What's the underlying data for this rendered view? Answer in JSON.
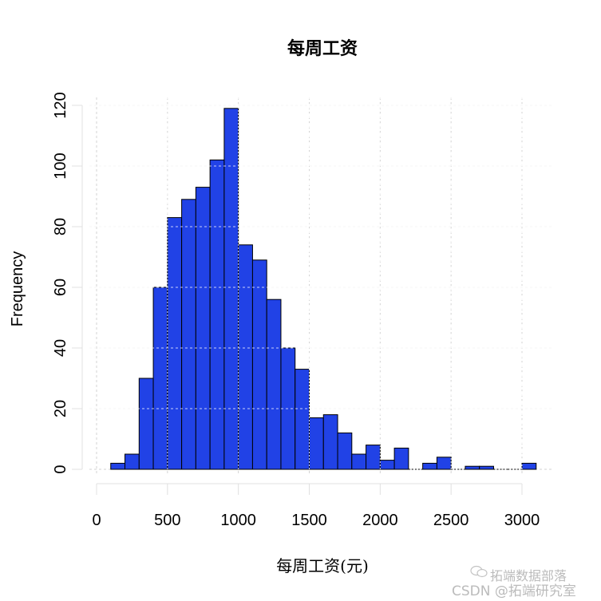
{
  "chart_data": {
    "type": "bar",
    "subtype": "histogram",
    "title": "每周工资",
    "xlabel": "每周工资(元)",
    "ylabel": "Frequency",
    "bin_width": 100,
    "bin_edges": [
      100,
      200,
      300,
      400,
      500,
      600,
      700,
      800,
      900,
      1000,
      1100,
      1200,
      1300,
      1400,
      1500,
      1600,
      1700,
      1800,
      1900,
      2000,
      2100,
      2200,
      2300,
      2400,
      2500,
      2600,
      2700,
      2800,
      2900,
      3000,
      3100
    ],
    "values": [
      2,
      5,
      30,
      60,
      83,
      89,
      93,
      102,
      119,
      74,
      69,
      56,
      40,
      33,
      17,
      18,
      12,
      5,
      8,
      3,
      7,
      0,
      2,
      4,
      0,
      1,
      1,
      0,
      0,
      2
    ],
    "xlim": [
      0,
      3100
    ],
    "ylim": [
      0,
      120
    ],
    "xticks": [
      0,
      500,
      1000,
      1500,
      2000,
      2500,
      3000
    ],
    "yticks": [
      0,
      20,
      40,
      60,
      80,
      100,
      120
    ],
    "grid": true,
    "bar_color": "#2142e6",
    "edge_color": "#000000",
    "grid_color": "#d3d3d3"
  },
  "labels": {
    "title": "每周工资",
    "xlabel": "每周工资(元)",
    "ylabel": "Frequency",
    "xticks": [
      "0",
      "500",
      "1000",
      "1500",
      "2000",
      "2500",
      "3000"
    ],
    "yticks": [
      "0",
      "20",
      "40",
      "60",
      "80",
      "100",
      "120"
    ]
  },
  "watermark": {
    "line1": "拓端数据部落",
    "line2": "CSDN @拓端研究室"
  }
}
